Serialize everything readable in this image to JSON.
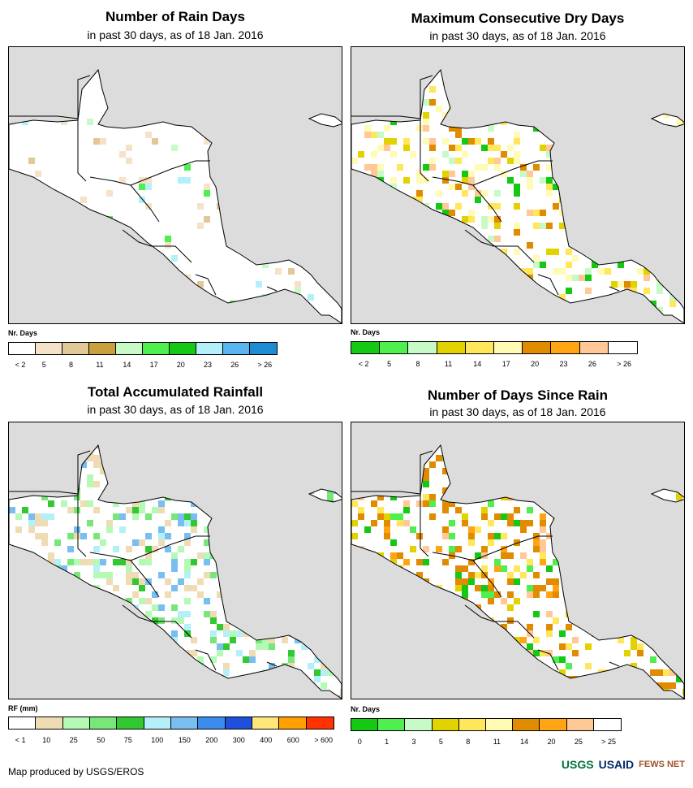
{
  "panels": [
    {
      "title": "Number of Rain Days",
      "subtitle": "in past 30 days, as of 18 Jan. 2016",
      "legend_title": "Nr. Days",
      "colors": [
        "#ffffff",
        "#f5e2c8",
        "#e1c898",
        "#c9a03c",
        "#c8fac8",
        "#50ef50",
        "#14c814",
        "#b4f0fa",
        "#5ab4f0",
        "#1e8cd2"
      ],
      "ticks": [
        "< 2",
        "5",
        "8",
        "11",
        "14",
        "17",
        "20",
        "23",
        "26",
        "> 26"
      ]
    },
    {
      "title": "Maximum Consecutive Dry Days",
      "subtitle": "in past 30 days, as of 18 Jan. 2016",
      "legend_title": "Nr. Days",
      "colors": [
        "#14c814",
        "#50ef50",
        "#c8fac8",
        "#e1d200",
        "#ffe65a",
        "#fffab4",
        "#e18c00",
        "#ffa514",
        "#ffc896",
        "#ffffff"
      ],
      "ticks": [
        "< 2",
        "5",
        "8",
        "11",
        "14",
        "17",
        "20",
        "23",
        "26",
        "> 26"
      ]
    },
    {
      "title": "Total Accumulated Rainfall",
      "subtitle": "in past 30 days, as of 18 Jan. 2016",
      "legend_title": "RF (mm)",
      "colors": [
        "#ffffff",
        "#f0dcb4",
        "#b4fab4",
        "#78e678",
        "#32c832",
        "#b4f0fa",
        "#78bef0",
        "#3c8cf0",
        "#1e50dc",
        "#ffe678",
        "#ffa000",
        "#ff3200"
      ],
      "ticks": [
        "< 1",
        "10",
        "25",
        "50",
        "75",
        "100",
        "150",
        "200",
        "300",
        "400",
        "600",
        "> 600"
      ]
    },
    {
      "title": "Number of Days Since Rain",
      "subtitle": "in past 30 days, as of 18 Jan. 2016",
      "legend_title": "Nr. Days",
      "colors": [
        "#14c814",
        "#50ef50",
        "#c8fac8",
        "#e1d200",
        "#ffe65a",
        "#fffab4",
        "#e18c00",
        "#ffa514",
        "#ffc896",
        "#ffffff"
      ],
      "ticks": [
        "0",
        "1",
        "3",
        "5",
        "8",
        "11",
        "14",
        "20",
        "25",
        "> 25"
      ]
    }
  ],
  "credit": "Map produced by USGS/EROS",
  "logos": [
    "USGS",
    "USAID",
    "FEWS NET"
  ]
}
